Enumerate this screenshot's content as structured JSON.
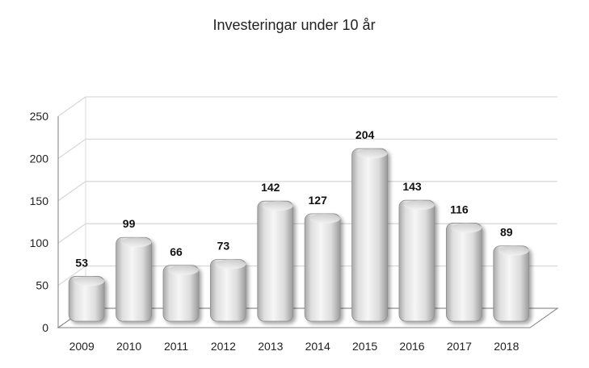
{
  "chart_data": {
    "type": "bar",
    "title": "Investeringar under 10 år",
    "categories": [
      "2009",
      "2010",
      "2011",
      "2012",
      "2013",
      "2014",
      "2015",
      "2016",
      "2017",
      "2018"
    ],
    "values": [
      53,
      99,
      66,
      73,
      142,
      127,
      204,
      143,
      116,
      89
    ],
    "data_labels": [
      "53",
      "99",
      "66",
      "73",
      "142",
      "127",
      "204",
      "143",
      "116",
      "89"
    ],
    "ylim": [
      0,
      250
    ],
    "yticks": [
      "0",
      "50",
      "100",
      "150",
      "200",
      "250"
    ],
    "ytick_values": [
      0,
      50,
      100,
      150,
      200,
      250
    ],
    "grid": true,
    "legend": "none",
    "colors": {
      "bar_light": "#f4f4f4",
      "bar_mid": "#d6d6d6",
      "bar_dark": "#a9a9a9",
      "grid": "#d9d9d9",
      "axis": "#7f7f7f"
    }
  }
}
